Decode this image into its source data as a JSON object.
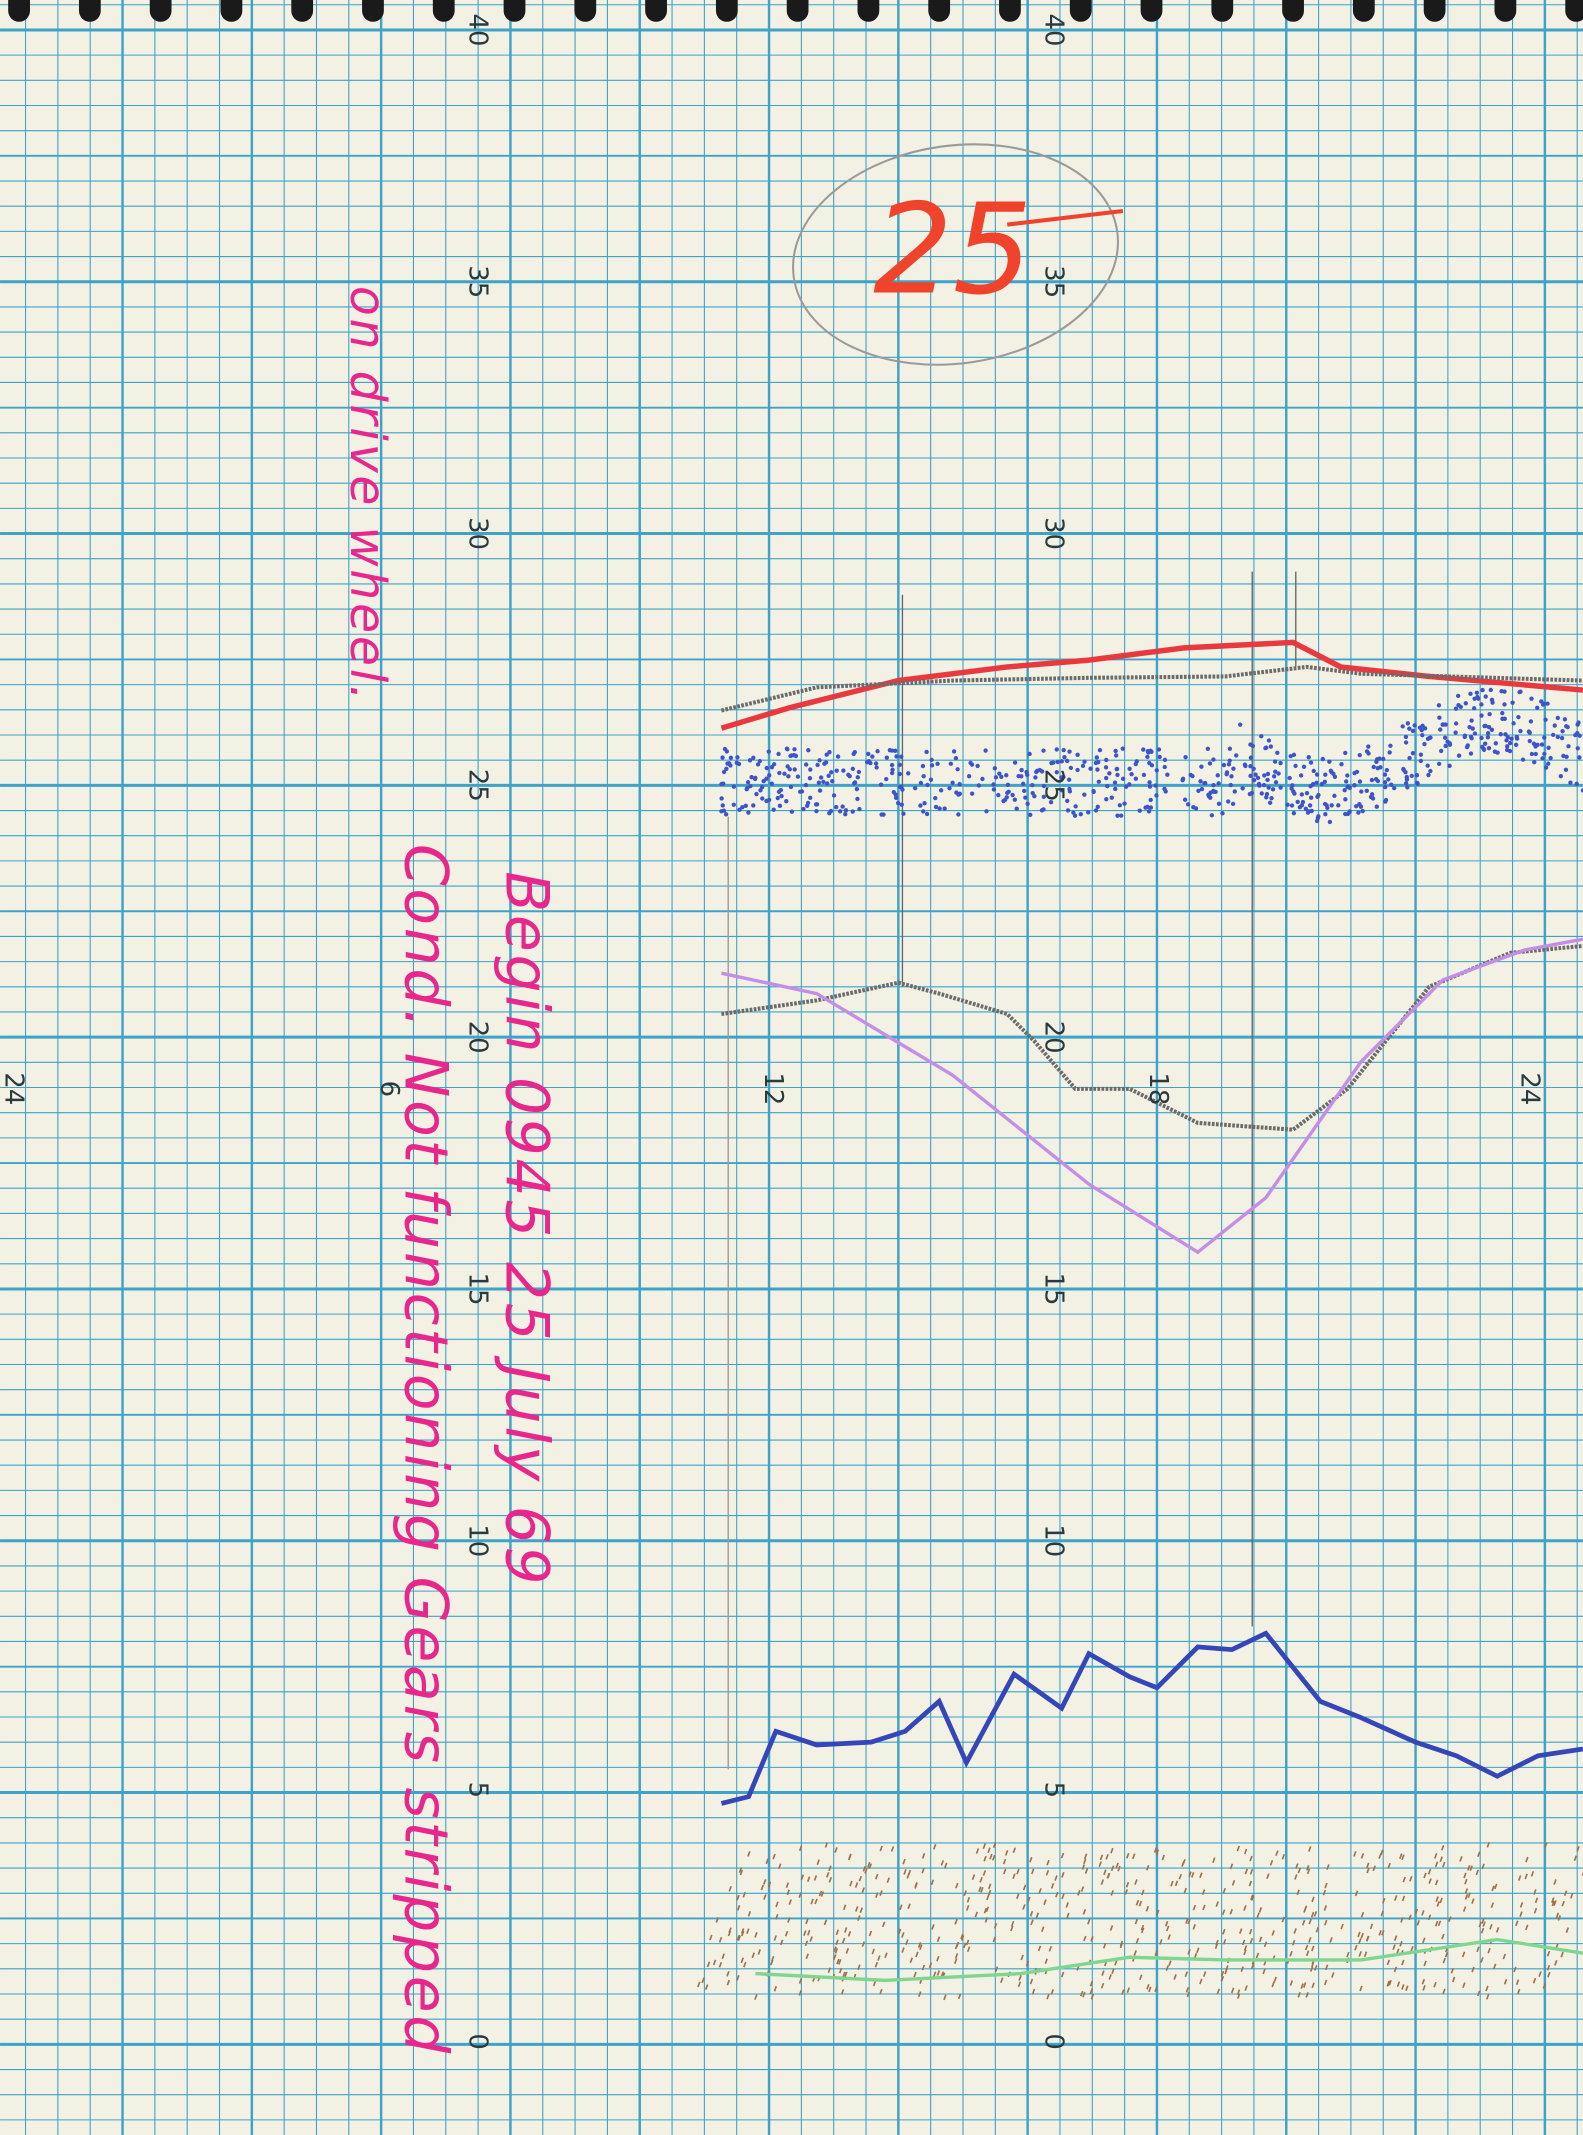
{
  "sheet_number": "25",
  "left_scale": [
    40,
    35,
    30,
    25,
    20,
    15,
    10,
    5,
    0
  ],
  "right_scale": [
    40,
    35,
    30,
    25,
    20,
    15,
    10,
    5,
    0
  ],
  "time_marks": [
    24,
    6,
    12,
    18,
    24
  ],
  "notes": {
    "begin": "Begin 0945 25 July 69",
    "condition": "Cond. Not functioning Gears stripped",
    "cause": "on drive wheel."
  }
}
